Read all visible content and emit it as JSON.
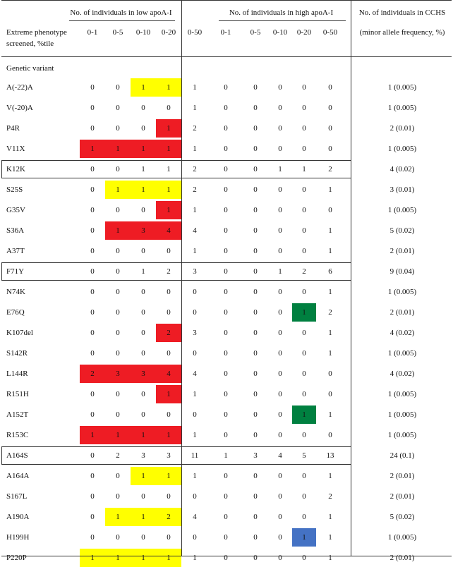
{
  "header": {
    "group_low": "No. of individuals in low apoA-I",
    "group_high": "No. of individuals in high apoA-I",
    "group_cchs": "No. of individuals in CCHS",
    "row_label_line1": "Extreme phenotype",
    "row_label_line2": "screened, %tile",
    "cchs_sub": "(minor allele frequency, %)",
    "low_cols": [
      "0-1",
      "0-5",
      "0-10",
      "0-20",
      "0-50"
    ],
    "high_cols": [
      "0-1",
      "0-5",
      "0-10",
      "0-20",
      "0-50"
    ]
  },
  "section_label": "Genetic variant",
  "colors": {
    "yellow": "#ffff00",
    "red": "#ee1c24",
    "green": "#008040",
    "blue": "#4472c4",
    "rule": "#333333"
  },
  "rows": [
    {
      "variant": "A(-22)A",
      "low": [
        "0",
        "0",
        "1",
        "1",
        "1"
      ],
      "high": [
        "0",
        "0",
        "0",
        "0",
        "0"
      ],
      "cchs": "1 (0.005)",
      "low_hl": [
        "",
        "",
        "yellow",
        "yellow"
      ],
      "high_hl": [
        "",
        "",
        "",
        ""
      ],
      "boxed": false
    },
    {
      "variant": "V(-20)A",
      "low": [
        "0",
        "0",
        "0",
        "0",
        "1"
      ],
      "high": [
        "0",
        "0",
        "0",
        "0",
        "0"
      ],
      "cchs": "1 (0.005)",
      "low_hl": [
        "",
        "",
        "",
        ""
      ],
      "high_hl": [
        "",
        "",
        "",
        ""
      ],
      "boxed": false
    },
    {
      "variant": "P4R",
      "low": [
        "0",
        "0",
        "0",
        "1",
        "2"
      ],
      "high": [
        "0",
        "0",
        "0",
        "0",
        "0"
      ],
      "cchs": "2 (0.01)",
      "low_hl": [
        "",
        "",
        "",
        "red"
      ],
      "high_hl": [
        "",
        "",
        "",
        ""
      ],
      "boxed": false
    },
    {
      "variant": "V11X",
      "low": [
        "1",
        "1",
        "1",
        "1",
        "1"
      ],
      "high": [
        "0",
        "0",
        "0",
        "0",
        "0"
      ],
      "cchs": "1 (0.005)",
      "low_hl": [
        "red",
        "red",
        "red",
        "red"
      ],
      "high_hl": [
        "",
        "",
        "",
        ""
      ],
      "boxed": false
    },
    {
      "variant": "K12K",
      "low": [
        "0",
        "0",
        "1",
        "1",
        "2"
      ],
      "high": [
        "0",
        "0",
        "1",
        "1",
        "2"
      ],
      "cchs": "4 (0.02)",
      "low_hl": [
        "",
        "",
        "",
        ""
      ],
      "high_hl": [
        "",
        "",
        "",
        ""
      ],
      "boxed": true
    },
    {
      "variant": "S25S",
      "low": [
        "0",
        "1",
        "1",
        "1",
        "2"
      ],
      "high": [
        "0",
        "0",
        "0",
        "0",
        "1"
      ],
      "cchs": "3 (0.01)",
      "low_hl": [
        "",
        "yellow",
        "yellow",
        "yellow"
      ],
      "high_hl": [
        "",
        "",
        "",
        ""
      ],
      "boxed": false
    },
    {
      "variant": "G35V",
      "low": [
        "0",
        "0",
        "0",
        "1",
        "1"
      ],
      "high": [
        "0",
        "0",
        "0",
        "0",
        "0"
      ],
      "cchs": "1 (0.005)",
      "low_hl": [
        "",
        "",
        "",
        "red"
      ],
      "high_hl": [
        "",
        "",
        "",
        ""
      ],
      "boxed": false
    },
    {
      "variant": "S36A",
      "low": [
        "0",
        "1",
        "3",
        "4",
        "4"
      ],
      "high": [
        "0",
        "0",
        "0",
        "0",
        "1"
      ],
      "cchs": "5 (0.02)",
      "low_hl": [
        "",
        "red",
        "red",
        "red"
      ],
      "high_hl": [
        "",
        "",
        "",
        ""
      ],
      "boxed": false
    },
    {
      "variant": "A37T",
      "low": [
        "0",
        "0",
        "0",
        "0",
        "1"
      ],
      "high": [
        "0",
        "0",
        "0",
        "0",
        "1"
      ],
      "cchs": "2 (0.01)",
      "low_hl": [
        "",
        "",
        "",
        ""
      ],
      "high_hl": [
        "",
        "",
        "",
        ""
      ],
      "boxed": false
    },
    {
      "variant": "F71Y",
      "low": [
        "0",
        "0",
        "1",
        "2",
        "3"
      ],
      "high": [
        "0",
        "0",
        "1",
        "2",
        "6"
      ],
      "cchs": "9 (0.04)",
      "low_hl": [
        "",
        "",
        "",
        ""
      ],
      "high_hl": [
        "",
        "",
        "",
        ""
      ],
      "boxed": true
    },
    {
      "variant": "N74K",
      "low": [
        "0",
        "0",
        "0",
        "0",
        "0"
      ],
      "high": [
        "0",
        "0",
        "0",
        "0",
        "1"
      ],
      "cchs": "1 (0.005)",
      "low_hl": [
        "",
        "",
        "",
        ""
      ],
      "high_hl": [
        "",
        "",
        "",
        ""
      ],
      "boxed": false
    },
    {
      "variant": "E76Q",
      "low": [
        "0",
        "0",
        "0",
        "0",
        "0"
      ],
      "high": [
        "0",
        "0",
        "0",
        "1",
        "2"
      ],
      "cchs": "2 (0.01)",
      "low_hl": [
        "",
        "",
        "",
        ""
      ],
      "high_hl": [
        "",
        "",
        "",
        "green"
      ],
      "boxed": false
    },
    {
      "variant": "K107del",
      "low": [
        "0",
        "0",
        "0",
        "2",
        "3"
      ],
      "high": [
        "0",
        "0",
        "0",
        "0",
        "1"
      ],
      "cchs": "4 (0.02)",
      "low_hl": [
        "",
        "",
        "",
        "red"
      ],
      "high_hl": [
        "",
        "",
        "",
        ""
      ],
      "boxed": false
    },
    {
      "variant": "S142R",
      "low": [
        "0",
        "0",
        "0",
        "0",
        "0"
      ],
      "high": [
        "0",
        "0",
        "0",
        "0",
        "1"
      ],
      "cchs": "1 (0.005)",
      "low_hl": [
        "",
        "",
        "",
        ""
      ],
      "high_hl": [
        "",
        "",
        "",
        ""
      ],
      "boxed": false
    },
    {
      "variant": "L144R",
      "low": [
        "2",
        "3",
        "3",
        "4",
        "4"
      ],
      "high": [
        "0",
        "0",
        "0",
        "0",
        "0"
      ],
      "cchs": "4 (0.02)",
      "low_hl": [
        "red",
        "red",
        "red",
        "red"
      ],
      "high_hl": [
        "",
        "",
        "",
        ""
      ],
      "boxed": false
    },
    {
      "variant": "R151H",
      "low": [
        "0",
        "0",
        "0",
        "1",
        "1"
      ],
      "high": [
        "0",
        "0",
        "0",
        "0",
        "0"
      ],
      "cchs": "1 (0.005)",
      "low_hl": [
        "",
        "",
        "",
        "red"
      ],
      "high_hl": [
        "",
        "",
        "",
        ""
      ],
      "boxed": false
    },
    {
      "variant": "A152T",
      "low": [
        "0",
        "0",
        "0",
        "0",
        "0"
      ],
      "high": [
        "0",
        "0",
        "0",
        "1",
        "1"
      ],
      "cchs": "1 (0.005)",
      "low_hl": [
        "",
        "",
        "",
        ""
      ],
      "high_hl": [
        "",
        "",
        "",
        "green"
      ],
      "boxed": false
    },
    {
      "variant": "R153C",
      "low": [
        "1",
        "1",
        "1",
        "1",
        "1"
      ],
      "high": [
        "0",
        "0",
        "0",
        "0",
        "0"
      ],
      "cchs": "1 (0.005)",
      "low_hl": [
        "red",
        "red",
        "red",
        "red"
      ],
      "high_hl": [
        "",
        "",
        "",
        ""
      ],
      "boxed": false
    },
    {
      "variant": "A164S",
      "low": [
        "0",
        "2",
        "3",
        "3",
        "11"
      ],
      "high": [
        "1",
        "3",
        "4",
        "5",
        "13"
      ],
      "cchs": "24 (0.1)",
      "low_hl": [
        "",
        "",
        "",
        ""
      ],
      "high_hl": [
        "",
        "",
        "",
        ""
      ],
      "boxed": true
    },
    {
      "variant": "A164A",
      "low": [
        "0",
        "0",
        "1",
        "1",
        "1"
      ],
      "high": [
        "0",
        "0",
        "0",
        "0",
        "1"
      ],
      "cchs": "2 (0.01)",
      "low_hl": [
        "",
        "",
        "yellow",
        "yellow"
      ],
      "high_hl": [
        "",
        "",
        "",
        ""
      ],
      "boxed": false
    },
    {
      "variant": "S167L",
      "low": [
        "0",
        "0",
        "0",
        "0",
        "0"
      ],
      "high": [
        "0",
        "0",
        "0",
        "0",
        "2"
      ],
      "cchs": "2 (0.01)",
      "low_hl": [
        "",
        "",
        "",
        ""
      ],
      "high_hl": [
        "",
        "",
        "",
        ""
      ],
      "boxed": false
    },
    {
      "variant": "A190A",
      "low": [
        "0",
        "1",
        "1",
        "2",
        "4"
      ],
      "high": [
        "0",
        "0",
        "0",
        "0",
        "1"
      ],
      "cchs": "5 (0.02)",
      "low_hl": [
        "",
        "yellow",
        "yellow",
        "yellow"
      ],
      "high_hl": [
        "",
        "",
        "",
        ""
      ],
      "boxed": false
    },
    {
      "variant": "H199H",
      "low": [
        "0",
        "0",
        "0",
        "0",
        "0"
      ],
      "high": [
        "0",
        "0",
        "0",
        "1",
        "1"
      ],
      "cchs": "1 (0.005)",
      "low_hl": [
        "",
        "",
        "",
        ""
      ],
      "high_hl": [
        "",
        "",
        "",
        "blue"
      ],
      "boxed": false
    },
    {
      "variant": "P220P",
      "low": [
        "1",
        "1",
        "1",
        "1",
        "1"
      ],
      "high": [
        "0",
        "0",
        "0",
        "0",
        "1"
      ],
      "cchs": "2 (0.01)",
      "low_hl": [
        "yellow",
        "yellow",
        "yellow",
        "yellow"
      ],
      "high_hl": [
        "",
        "",
        "",
        ""
      ],
      "boxed": false
    }
  ]
}
